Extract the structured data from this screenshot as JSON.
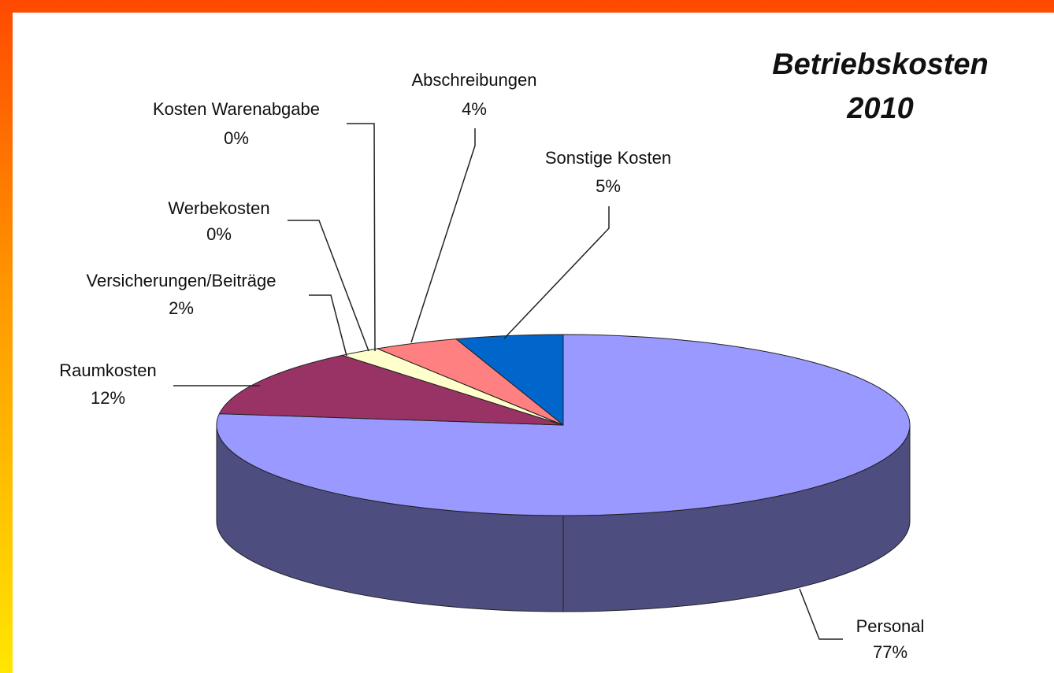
{
  "chart_data": {
    "type": "pie3d",
    "title": "Betriebskosten 2010",
    "categories": [
      "Personal",
      "Raumkosten",
      "Versicherungen/Beiträge",
      "Werbekosten",
      "Kosten Warenabgabe",
      "Abschreibungen",
      "Sonstige Kosten"
    ],
    "values": [
      77,
      12,
      2,
      0,
      0,
      4,
      5
    ],
    "value_labels": [
      "77%",
      "12%",
      "2%",
      "0%",
      "0%",
      "4%",
      "5%"
    ],
    "colors": [
      "#9999ff",
      "#993366",
      "#ffffcc",
      "#ccffff",
      "#660066",
      "#ff8080",
      "#0066cc"
    ]
  }
}
